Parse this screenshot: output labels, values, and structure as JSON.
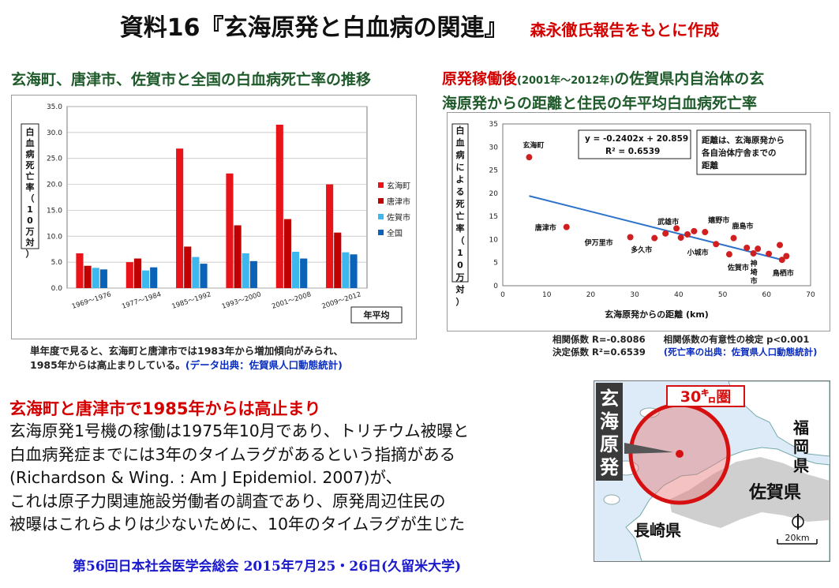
{
  "title": {
    "main": "資料16『玄海原発と白血病の関連』",
    "sub": "森永徹氏報告をもとに作成"
  },
  "left_heading": "玄海町、唐津市、佐賀市と全国の白血病死亡率の推移",
  "right_heading": {
    "red": "原発稼働後",
    "period": "(2001年～2012年)",
    "line1_rest": "の佐賀県内自治体の玄",
    "line2": "海原発からの距離と住民の年平均白血病死亡率"
  },
  "left_note": {
    "line1": "単年度で見ると、玄海町と唐津市では1983年から増加傾向がみられ、",
    "line2": "1985年からは高止まりしている。",
    "source": "(データ出典：佐賀県人口動態統計)"
  },
  "stats": {
    "r_label": "相関係数 R=-0.8086",
    "sig_label": "相関係数の有意性の検定 p<0.001",
    "r2_label": "決定係数 R²=0.6539",
    "source": "(死亡率の出典：佐賀県人口動態統計)"
  },
  "red_statement": "玄海町と唐津市で1985年からは高止まり",
  "body_lines": [
    "玄海原発1号機の稼働は1975年10月であり、トリチウム被曝と",
    "白血病発症までには3年のタイムラグがあるという指摘がある",
    "(Richardson & Wing. : Am J Epidemiol. 2007)が、",
    "これは原子力関連施設労働者の調査であり、原発周辺住民の",
    "被曝はこれらよりは少ないために、10年のタイムラグが生じた"
  ],
  "footer": "第56回日本社会医学会総会 2015年7月25・26日(久留米大学)",
  "map": {
    "vertical_label": [
      "玄",
      "海",
      "原",
      "発"
    ],
    "radius_label": "30㌔圏",
    "labels": {
      "fukuoka": "福岡県",
      "saga": "佐賀県",
      "nagasaki": "長崎県"
    },
    "scale": "20km",
    "colors": {
      "sea": "#dcebf7",
      "land": "#ffffff",
      "saga_land": "#cfcfcf",
      "circle": "#d61010"
    }
  },
  "chart_data": [
    {
      "type": "bar",
      "categories": [
        "1969～1976",
        "1977～1984",
        "1985～1992",
        "1993～2000",
        "2001～2008",
        "2009～2012"
      ],
      "series": [
        {
          "name": "玄海町",
          "color": "#e8141a",
          "values": [
            6.7,
            5.0,
            26.9,
            22.1,
            31.5,
            20.0
          ]
        },
        {
          "name": "唐津市",
          "color": "#c00000",
          "values": [
            4.3,
            5.7,
            8.0,
            12.1,
            13.3,
            10.7
          ]
        },
        {
          "name": "佐賀市",
          "color": "#3db8ef",
          "values": [
            3.9,
            3.4,
            6.0,
            6.7,
            7.0,
            6.9
          ]
        },
        {
          "name": "全国",
          "color": "#0b63b8",
          "values": [
            3.6,
            4.0,
            4.7,
            5.2,
            5.7,
            6.5
          ]
        }
      ],
      "ylim": [
        0,
        35
      ],
      "yticks": [
        "0.0",
        "5.0",
        "10.0",
        "15.0",
        "20.0",
        "25.0",
        "30.0",
        "35.0"
      ],
      "ylabel": "白血病死亡率（10万対）",
      "xlabel": "年平均",
      "legend": "right"
    },
    {
      "type": "scatter",
      "points": [
        {
          "label": "玄海町",
          "x": 6,
          "y": 27.8
        },
        {
          "label": "唐津市",
          "x": 14.5,
          "y": 12.7
        },
        {
          "label": "伊万里市",
          "x": 29,
          "y": 10.5
        },
        {
          "label": "多久市",
          "x": 34.5,
          "y": 10.3
        },
        {
          "label": "武雄市",
          "x": 37,
          "y": 11.3
        },
        {
          "label": "",
          "x": 39.5,
          "y": 12.4
        },
        {
          "label": "小城市",
          "x": 40.5,
          "y": 10.4
        },
        {
          "label": "",
          "x": 42,
          "y": 11.1
        },
        {
          "label": "",
          "x": 43.5,
          "y": 11.8
        },
        {
          "label": "嬉野市",
          "x": 46,
          "y": 11.6
        },
        {
          "label": "",
          "x": 48.5,
          "y": 9.0
        },
        {
          "label": "佐賀市",
          "x": 51.5,
          "y": 6.8
        },
        {
          "label": "鹿島市",
          "x": 52.5,
          "y": 10.3
        },
        {
          "label": "",
          "x": 55.5,
          "y": 8.2
        },
        {
          "label": "神埼市",
          "x": 57,
          "y": 7.0
        },
        {
          "label": "",
          "x": 58,
          "y": 8.0
        },
        {
          "label": "",
          "x": 60.5,
          "y": 6.9
        },
        {
          "label": "",
          "x": 63,
          "y": 8.8
        },
        {
          "label": "鳥栖市",
          "x": 63.5,
          "y": 5.6
        },
        {
          "label": "",
          "x": 64.5,
          "y": 6.4
        }
      ],
      "trendline": {
        "slope": -0.2402,
        "intercept": 20.859,
        "x_range": [
          6,
          64
        ]
      },
      "equation": "y = -0.2402x + 20.859",
      "r2_text": "R² = 0.6539",
      "annotation": [
        "距離は、玄海原発から",
        "各自治体庁舎までの",
        "距離"
      ],
      "xlim": [
        0,
        70
      ],
      "ylim": [
        0,
        35
      ],
      "xticks": [
        0,
        10,
        20,
        30,
        40,
        50,
        60,
        70
      ],
      "yticks": [
        0,
        5,
        10,
        15,
        20,
        25,
        30,
        35
      ],
      "xlabel": "玄海原発からの距離 (km)",
      "ylabel": "白血病による死亡率（10万対）",
      "grid": false,
      "point_color": "#d11f1f",
      "line_color": "#2e73c9"
    }
  ]
}
